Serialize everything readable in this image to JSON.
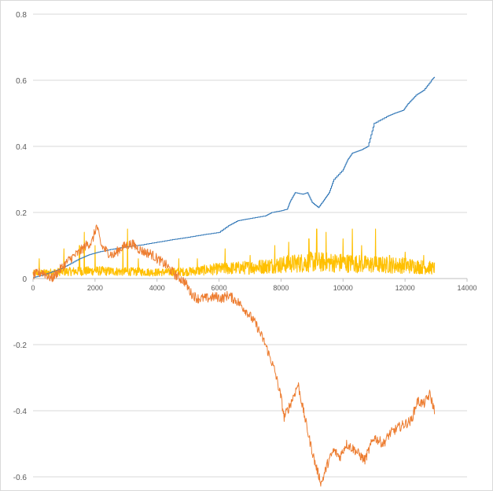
{
  "chart_data": {
    "type": "line",
    "title": "",
    "xlabel": "",
    "ylabel": "",
    "xlim": [
      0,
      14000
    ],
    "ylim": [
      -0.6,
      0.8
    ],
    "x_ticks": [
      0,
      2000,
      4000,
      6000,
      8000,
      10000,
      12000,
      14000
    ],
    "y_ticks": [
      0.8,
      0.6,
      0.4,
      0.2,
      0,
      -0.2,
      -0.4,
      -0.6
    ],
    "grid": "horizontal",
    "legend": "none",
    "series": [
      {
        "color": "#2e75b6",
        "style": "step",
        "points": [
          [
            0,
            0.003
          ],
          [
            300,
            0.01
          ],
          [
            600,
            0.02
          ],
          [
            900,
            0.03
          ],
          [
            1200,
            0.045
          ],
          [
            1500,
            0.06
          ],
          [
            1800,
            0.072
          ],
          [
            2100,
            0.08
          ],
          [
            2500,
            0.088
          ],
          [
            3000,
            0.096
          ],
          [
            3500,
            0.102
          ],
          [
            4000,
            0.11
          ],
          [
            4500,
            0.118
          ],
          [
            5000,
            0.125
          ],
          [
            5500,
            0.133
          ],
          [
            6000,
            0.14
          ],
          [
            6300,
            0.16
          ],
          [
            6600,
            0.175
          ],
          [
            7000,
            0.182
          ],
          [
            7500,
            0.19
          ],
          [
            7700,
            0.2
          ],
          [
            8000,
            0.205
          ],
          [
            8200,
            0.21
          ],
          [
            8300,
            0.235
          ],
          [
            8450,
            0.26
          ],
          [
            8700,
            0.255
          ],
          [
            8850,
            0.26
          ],
          [
            9000,
            0.23
          ],
          [
            9200,
            0.215
          ],
          [
            9400,
            0.24
          ],
          [
            9550,
            0.26
          ],
          [
            9700,
            0.3
          ],
          [
            10000,
            0.33
          ],
          [
            10150,
            0.36
          ],
          [
            10300,
            0.38
          ],
          [
            10600,
            0.39
          ],
          [
            10800,
            0.4
          ],
          [
            11000,
            0.47
          ],
          [
            11400,
            0.49
          ],
          [
            11650,
            0.5
          ],
          [
            11950,
            0.51
          ],
          [
            12100,
            0.53
          ],
          [
            12350,
            0.555
          ],
          [
            12600,
            0.57
          ],
          [
            12850,
            0.6
          ],
          [
            12950,
            0.61
          ]
        ]
      },
      {
        "color": "#ed7d31",
        "style": "noisy",
        "points": [
          [
            0,
            0.01
          ],
          [
            300,
            0.02
          ],
          [
            600,
            0.0
          ],
          [
            900,
            0.03
          ],
          [
            1200,
            0.06
          ],
          [
            1500,
            0.08
          ],
          [
            1700,
            0.1
          ],
          [
            1900,
            0.11
          ],
          [
            2050,
            0.16
          ],
          [
            2200,
            0.1
          ],
          [
            2400,
            0.08
          ],
          [
            2600,
            0.07
          ],
          [
            2800,
            0.09
          ],
          [
            3000,
            0.1
          ],
          [
            3200,
            0.105
          ],
          [
            3400,
            0.09
          ],
          [
            3600,
            0.08
          ],
          [
            3800,
            0.075
          ],
          [
            4000,
            0.06
          ],
          [
            4300,
            0.04
          ],
          [
            4600,
            0.01
          ],
          [
            4900,
            -0.01
          ],
          [
            5100,
            -0.045
          ],
          [
            5300,
            -0.06
          ],
          [
            5600,
            -0.06
          ],
          [
            5900,
            -0.055
          ],
          [
            6100,
            -0.06
          ],
          [
            6300,
            -0.05
          ],
          [
            6600,
            -0.07
          ],
          [
            6900,
            -0.1
          ],
          [
            7200,
            -0.14
          ],
          [
            7500,
            -0.2
          ],
          [
            7800,
            -0.28
          ],
          [
            8000,
            -0.36
          ],
          [
            8100,
            -0.42
          ],
          [
            8300,
            -0.38
          ],
          [
            8550,
            -0.32
          ],
          [
            8700,
            -0.39
          ],
          [
            8900,
            -0.48
          ],
          [
            9100,
            -0.56
          ],
          [
            9300,
            -0.62
          ],
          [
            9500,
            -0.56
          ],
          [
            9700,
            -0.52
          ],
          [
            9900,
            -0.54
          ],
          [
            10100,
            -0.5
          ],
          [
            10400,
            -0.52
          ],
          [
            10700,
            -0.55
          ],
          [
            11000,
            -0.48
          ],
          [
            11300,
            -0.5
          ],
          [
            11500,
            -0.47
          ],
          [
            11800,
            -0.45
          ],
          [
            12000,
            -0.44
          ],
          [
            12200,
            -0.43
          ],
          [
            12400,
            -0.37
          ],
          [
            12600,
            -0.38
          ],
          [
            12800,
            -0.35
          ],
          [
            12950,
            -0.4
          ]
        ]
      },
      {
        "color": "#ffc000",
        "style": "spiky",
        "points": [
          [
            0,
            0.015
          ],
          [
            1000,
            0.02
          ],
          [
            2000,
            0.022
          ],
          [
            3000,
            0.02
          ],
          [
            4000,
            0.018
          ],
          [
            5000,
            0.02
          ],
          [
            6000,
            0.028
          ],
          [
            7000,
            0.032
          ],
          [
            8000,
            0.04
          ],
          [
            9000,
            0.048
          ],
          [
            10000,
            0.045
          ],
          [
            11000,
            0.04
          ],
          [
            12000,
            0.038
          ],
          [
            12950,
            0.03
          ]
        ],
        "spikes": [
          [
            200,
            0.06
          ],
          [
            1000,
            0.09
          ],
          [
            1500,
            0.1
          ],
          [
            1650,
            0.14
          ],
          [
            2000,
            0.1
          ],
          [
            2900,
            0.1
          ],
          [
            3050,
            0.15
          ],
          [
            3400,
            0.06
          ],
          [
            4700,
            0.06
          ],
          [
            5300,
            0.06
          ],
          [
            6200,
            0.09
          ],
          [
            7000,
            0.07
          ],
          [
            7800,
            0.1
          ],
          [
            8250,
            0.11
          ],
          [
            8900,
            0.12
          ],
          [
            9150,
            0.15
          ],
          [
            9450,
            0.14
          ],
          [
            10000,
            0.12
          ],
          [
            10300,
            0.15
          ],
          [
            10600,
            0.1
          ],
          [
            11050,
            0.15
          ],
          [
            11500,
            0.07
          ],
          [
            12000,
            0.08
          ],
          [
            12600,
            0.07
          ]
        ]
      }
    ]
  }
}
